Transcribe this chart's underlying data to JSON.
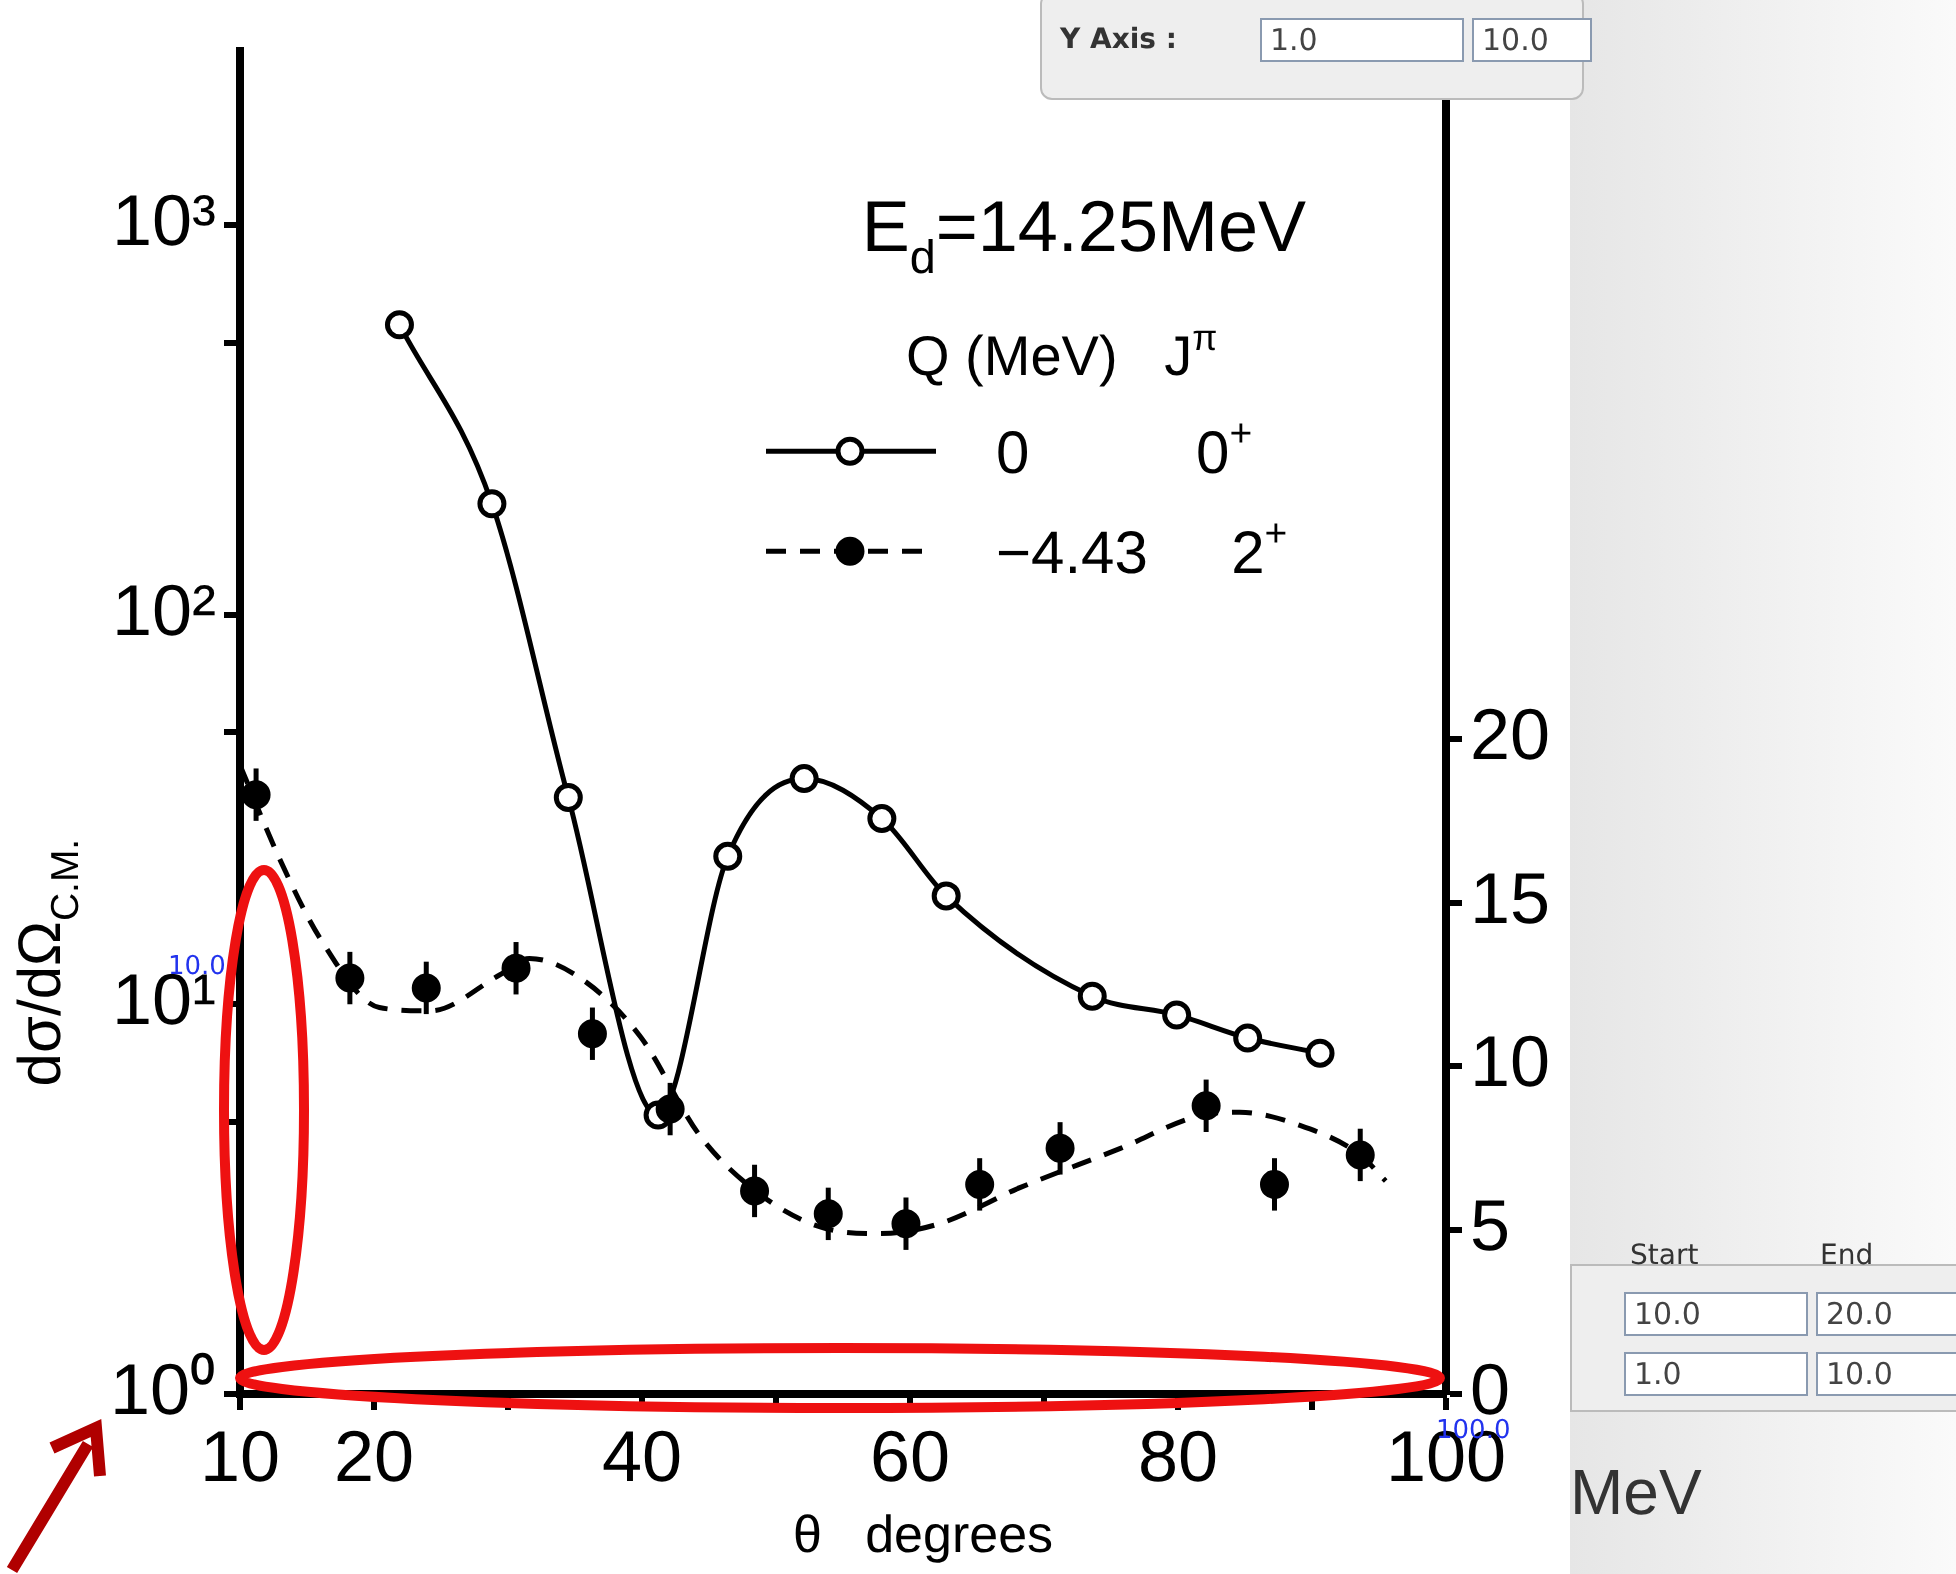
{
  "chart_data": {
    "type": "line",
    "title": "E$_{d}$=14.25MeV",
    "legend_title": "Q (MeV)   J$^{π}$",
    "legend": "top right",
    "xlabel": "θ   degrees",
    "ylabel": "dσ/dΩ$_{C.M.}$",
    "xlim": [
      10,
      100
    ],
    "xticks": [
      10,
      20,
      {
        "value": 30,
        "label": null
      },
      40,
      {
        "value": 50,
        "label": null
      },
      60,
      {
        "value": 70,
        "label": null
      },
      80,
      {
        "value": 90,
        "label": null
      },
      100
    ],
    "log": "y",
    "ylim": [
      1,
      2800
    ],
    "yticks": [
      {
        "value": 1,
        "label": "10⁰"
      },
      {
        "value": 5,
        "label": null
      },
      {
        "value": 10,
        "label": "10¹"
      },
      {
        "value": 50,
        "label": null
      },
      {
        "value": 100,
        "label": "10²"
      },
      {
        "value": 500,
        "label": null
      },
      {
        "value": 1000,
        "label": "10³"
      }
    ],
    "y2lim": [
      0,
      41
    ],
    "y2ticks": [
      0,
      5,
      10,
      15,
      20
    ],
    "series": [
      {
        "type": "line",
        "name": "0          0$^{+}$",
        "color": "#000000",
        "marker": "circle",
        "line_style": "solid",
        "x": [
          21.9,
          28.8,
          34.5,
          41.2,
          46.4,
          52.1,
          57.9,
          62.7,
          73.6,
          79.9,
          85.2,
          90.6
        ],
        "values": [
          556,
          193,
          34,
          5.2,
          24,
          38,
          30,
          19,
          10.5,
          9.4,
          8.2,
          7.5
        ]
      },
      {
        "type": "scatter",
        "name": "−4.43     2$^{+}$",
        "color": "#000000",
        "marker": "circle",
        "axis": "y2",
        "line_style": "dashed",
        "x": [
          11.2,
          18.2,
          23.9,
          30.6,
          36.3,
          42.1,
          48.4,
          53.9,
          59.7,
          65.2,
          71.2,
          82.1,
          87.2,
          93.6
        ],
        "values": [
          18.3,
          12.7,
          12.4,
          13.0,
          11.0,
          8.7,
          6.2,
          5.5,
          5.2,
          6.4,
          7.5,
          8.8,
          6.4,
          7.3
        ],
        "errors": [
          0.8,
          0.8,
          0.8,
          0.8,
          0.8,
          0.8,
          0.8,
          0.8,
          0.8,
          0.8,
          0.8,
          0.8,
          0.8,
          0.8
        ]
      },
      {
        "type": "line",
        "color": "#000000",
        "marker": "none",
        "axis": "y2",
        "line_style": "dashed",
        "x": [
          10,
          13,
          16,
          20.4,
          24.2,
          29.4,
          31.6,
          35.4,
          39.9,
          44.3,
          48.8,
          53.3,
          57.8,
          62.2,
          68.2,
          75.7,
          81.6,
          84.6,
          89.1,
          93.6,
          95.5
        ],
        "values": [
          19.2,
          16.3,
          13.9,
          11.8,
          11.7,
          12.8,
          13.3,
          12.7,
          10.9,
          7.9,
          6.1,
          5.1,
          4.9,
          5.2,
          6.3,
          7.5,
          8.5,
          8.6,
          8.2,
          7.3,
          6.5
        ]
      }
    ],
    "annotations": [
      "Y Axis :",
      "1.0",
      "10.0",
      "Start",
      "End",
      "10.0",
      "20.0",
      "1.0",
      "10.0",
      "10.0",
      "100.0",
      "MeV"
    ]
  }
}
